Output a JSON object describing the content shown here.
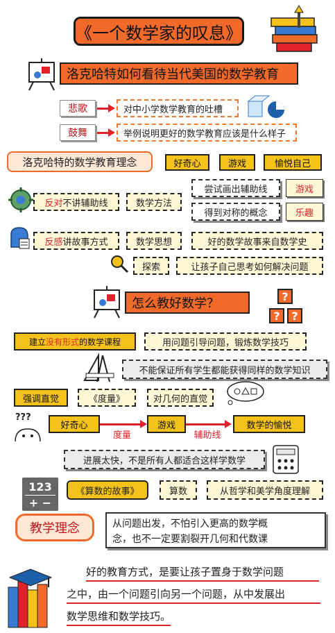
{
  "title": "《一个数学家的叹息》",
  "section1": {
    "banner": "洛克哈特如何看待当代美国的数学教育",
    "items": [
      {
        "tag": "悲歌",
        "desc": "对中小学数学教育的吐槽"
      },
      {
        "tag": "鼓舞",
        "desc": "举例说明更好的数学教育应该是什么样子"
      }
    ]
  },
  "philosophy": {
    "label": "洛克哈特的数学教育理念",
    "tags": [
      "好奇心",
      "游戏",
      "愉悦自己"
    ]
  },
  "row_aux": {
    "emph": "反对",
    "rest": "不讲辅助线",
    "method": "数学方法",
    "try_text": "尝试画出辅助线",
    "try_tag": "游戏",
    "sym_text": "得到对称的概念",
    "sym_tag": "乐趣"
  },
  "row_story": {
    "emph": "反感",
    "rest": "讲故事方式",
    "thought": "数学思想",
    "history": "好的数学故事来自数学史",
    "explore": "探索",
    "explore_desc": "让孩子自己思考如何解决问题"
  },
  "section2": {
    "banner": "怎么教好数学？",
    "qmarks": [
      "?",
      "?",
      "?"
    ]
  },
  "course": {
    "pre": "建立",
    "emph": "没有形式",
    "post": "的数学课程",
    "guide": "用问题引导问题，锻炼数学技巧",
    "no_guarantee": "不能保证所有学生都能获得同样的数学知识"
  },
  "intuition": {
    "a": "强调直觉",
    "b": "《度量》",
    "c": "对几何的直觉"
  },
  "flow": {
    "qm": "???",
    "n1": "好奇心",
    "n2": "游戏",
    "n3": "数学的愉悦",
    "l1": "度量",
    "l2": "辅助线"
  },
  "progress_note": "进展太快，不是所有人都适合这样学数学",
  "numbers_row": {
    "icon_top": "123",
    "icon_bottom": "+ −",
    "book": "《算数的故事》",
    "arith": "算数",
    "aesthetics": "从哲学和美学角度理解"
  },
  "teaching": {
    "label": "教学理念",
    "line1": "从问题出发，不怕引入更高的数学概",
    "line2": "念，也不一定要割裂开几何和代数课"
  },
  "conclusion": {
    "line1": "好的教育方式，是要让孩子置身于数学问题",
    "line2": "之中，由一个问题引向另一个问题，从中发展出",
    "line3": "数学思维和数学技巧。"
  }
}
